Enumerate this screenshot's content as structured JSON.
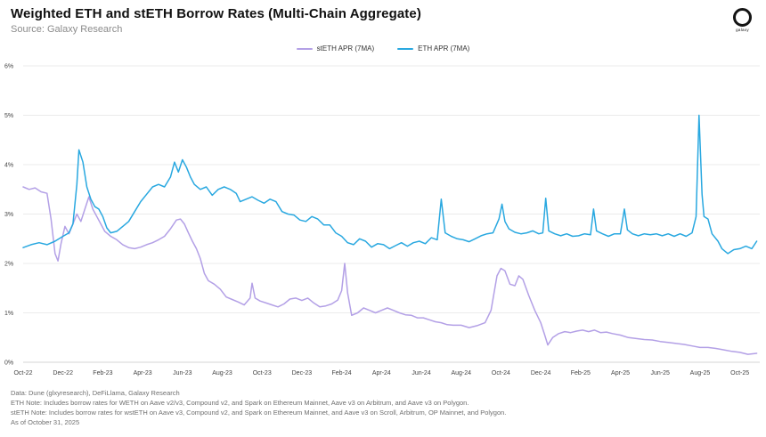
{
  "header": {
    "title": "Weighted ETH and stETH Borrow Rates (Multi-Chain Aggregate)",
    "source": "Source: Galaxy Research",
    "logo_text": "galaxy"
  },
  "legend": [
    {
      "label": "stETH APR (7MA)",
      "color": "#b3a0e6"
    },
    {
      "label": "ETH APR (7MA)",
      "color": "#29a8e0"
    }
  ],
  "footer": {
    "lines": [
      "Data: Dune (glxyresearch), DeFiLlama, Galaxy Research",
      "ETH Note: Includes borrow rates for WETH on Aave v2/v3, Compound v2, and Spark on Ethereum Mainnet, Aave v3 on Arbitrum, and Aave v3 on Polygon.",
      "stETH Note: Includes  borrow rates for wstETH on Aave v3, Compound v2, and  Spark on Ethereum Mainnet, and Aave v3 on Scroll, Arbitrum, OP Mainnet, and Polygon.",
      "As of October 31, 2025"
    ]
  },
  "chart_data": {
    "type": "line",
    "title": "Weighted ETH and stETH Borrow Rates (Multi-Chain Aggregate)",
    "x_unit": "months since Oct-2022",
    "xlim": [
      0,
      37
    ],
    "ylim": [
      0,
      6
    ],
    "grid": true,
    "legend_position": "top",
    "y_ticks": [
      "0%",
      "1%",
      "2%",
      "3%",
      "4%",
      "5%",
      "6%"
    ],
    "x_ticks": [
      {
        "x": 0,
        "label": "Oct-22"
      },
      {
        "x": 2,
        "label": "Dec-22"
      },
      {
        "x": 4,
        "label": "Feb-23"
      },
      {
        "x": 6,
        "label": "Apr-23"
      },
      {
        "x": 8,
        "label": "Jun-23"
      },
      {
        "x": 10,
        "label": "Aug-23"
      },
      {
        "x": 12,
        "label": "Oct-23"
      },
      {
        "x": 14,
        "label": "Dec-23"
      },
      {
        "x": 16,
        "label": "Feb-24"
      },
      {
        "x": 18,
        "label": "Apr-24"
      },
      {
        "x": 20,
        "label": "Jun-24"
      },
      {
        "x": 22,
        "label": "Aug-24"
      },
      {
        "x": 24,
        "label": "Oct-24"
      },
      {
        "x": 26,
        "label": "Dec-24"
      },
      {
        "x": 28,
        "label": "Feb-25"
      },
      {
        "x": 30,
        "label": "Apr-25"
      },
      {
        "x": 32,
        "label": "Jun-25"
      },
      {
        "x": 34,
        "label": "Aug-25"
      },
      {
        "x": 36,
        "label": "Oct-25"
      }
    ],
    "series": [
      {
        "name": "stETH APR (7MA)",
        "color": "#b3a0e6",
        "points": [
          [
            0,
            3.55
          ],
          [
            0.3,
            3.5
          ],
          [
            0.6,
            3.53
          ],
          [
            0.9,
            3.45
          ],
          [
            1.2,
            3.42
          ],
          [
            1.4,
            2.9
          ],
          [
            1.6,
            2.2
          ],
          [
            1.75,
            2.05
          ],
          [
            1.9,
            2.4
          ],
          [
            2.1,
            2.75
          ],
          [
            2.3,
            2.6
          ],
          [
            2.5,
            2.8
          ],
          [
            2.7,
            3.0
          ],
          [
            2.9,
            2.85
          ],
          [
            3.1,
            3.1
          ],
          [
            3.3,
            3.35
          ],
          [
            3.5,
            3.1
          ],
          [
            3.7,
            2.95
          ],
          [
            3.9,
            2.8
          ],
          [
            4.1,
            2.65
          ],
          [
            4.4,
            2.55
          ],
          [
            4.7,
            2.48
          ],
          [
            5,
            2.38
          ],
          [
            5.3,
            2.32
          ],
          [
            5.6,
            2.3
          ],
          [
            5.9,
            2.33
          ],
          [
            6.2,
            2.38
          ],
          [
            6.5,
            2.42
          ],
          [
            6.8,
            2.48
          ],
          [
            7.1,
            2.55
          ],
          [
            7.4,
            2.7
          ],
          [
            7.7,
            2.88
          ],
          [
            7.9,
            2.9
          ],
          [
            8.1,
            2.8
          ],
          [
            8.3,
            2.62
          ],
          [
            8.5,
            2.45
          ],
          [
            8.7,
            2.3
          ],
          [
            8.9,
            2.1
          ],
          [
            9.1,
            1.8
          ],
          [
            9.3,
            1.65
          ],
          [
            9.6,
            1.58
          ],
          [
            9.9,
            1.48
          ],
          [
            10.2,
            1.32
          ],
          [
            10.5,
            1.27
          ],
          [
            10.8,
            1.22
          ],
          [
            11.1,
            1.16
          ],
          [
            11.4,
            1.3
          ],
          [
            11.5,
            1.6
          ],
          [
            11.65,
            1.3
          ],
          [
            11.9,
            1.24
          ],
          [
            12.2,
            1.2
          ],
          [
            12.5,
            1.16
          ],
          [
            12.8,
            1.12
          ],
          [
            13.1,
            1.18
          ],
          [
            13.4,
            1.28
          ],
          [
            13.7,
            1.3
          ],
          [
            14,
            1.25
          ],
          [
            14.3,
            1.3
          ],
          [
            14.6,
            1.2
          ],
          [
            14.9,
            1.12
          ],
          [
            15.2,
            1.14
          ],
          [
            15.5,
            1.18
          ],
          [
            15.8,
            1.26
          ],
          [
            16,
            1.45
          ],
          [
            16.15,
            2.0
          ],
          [
            16.3,
            1.4
          ],
          [
            16.5,
            0.95
          ],
          [
            16.8,
            1.0
          ],
          [
            17.1,
            1.1
          ],
          [
            17.4,
            1.05
          ],
          [
            17.7,
            1.0
          ],
          [
            18,
            1.05
          ],
          [
            18.3,
            1.1
          ],
          [
            18.6,
            1.05
          ],
          [
            18.9,
            1.0
          ],
          [
            19.2,
            0.96
          ],
          [
            19.5,
            0.95
          ],
          [
            19.8,
            0.9
          ],
          [
            20.1,
            0.9
          ],
          [
            20.4,
            0.86
          ],
          [
            20.7,
            0.82
          ],
          [
            21,
            0.8
          ],
          [
            21.3,
            0.76
          ],
          [
            21.6,
            0.75
          ],
          [
            22,
            0.75
          ],
          [
            22.4,
            0.7
          ],
          [
            22.8,
            0.74
          ],
          [
            23.2,
            0.8
          ],
          [
            23.5,
            1.05
          ],
          [
            23.8,
            1.75
          ],
          [
            24,
            1.9
          ],
          [
            24.2,
            1.85
          ],
          [
            24.45,
            1.58
          ],
          [
            24.7,
            1.55
          ],
          [
            24.9,
            1.75
          ],
          [
            25.1,
            1.68
          ],
          [
            25.4,
            1.35
          ],
          [
            25.7,
            1.05
          ],
          [
            26,
            0.8
          ],
          [
            26.2,
            0.55
          ],
          [
            26.35,
            0.35
          ],
          [
            26.6,
            0.5
          ],
          [
            26.9,
            0.58
          ],
          [
            27.2,
            0.62
          ],
          [
            27.5,
            0.6
          ],
          [
            27.8,
            0.63
          ],
          [
            28.1,
            0.65
          ],
          [
            28.4,
            0.62
          ],
          [
            28.7,
            0.65
          ],
          [
            29,
            0.6
          ],
          [
            29.3,
            0.61
          ],
          [
            29.6,
            0.58
          ],
          [
            30,
            0.55
          ],
          [
            30.4,
            0.5
          ],
          [
            30.8,
            0.48
          ],
          [
            31.2,
            0.46
          ],
          [
            31.6,
            0.45
          ],
          [
            32,
            0.42
          ],
          [
            32.4,
            0.4
          ],
          [
            32.8,
            0.38
          ],
          [
            33.2,
            0.36
          ],
          [
            33.6,
            0.33
          ],
          [
            34,
            0.3
          ],
          [
            34.4,
            0.3
          ],
          [
            34.8,
            0.28
          ],
          [
            35.2,
            0.25
          ],
          [
            35.6,
            0.22
          ],
          [
            36,
            0.2
          ],
          [
            36.4,
            0.16
          ],
          [
            36.85,
            0.18
          ]
        ]
      },
      {
        "name": "ETH APR (7MA)",
        "color": "#29a8e0",
        "points": [
          [
            0,
            2.32
          ],
          [
            0.4,
            2.38
          ],
          [
            0.8,
            2.42
          ],
          [
            1.2,
            2.38
          ],
          [
            1.6,
            2.45
          ],
          [
            2,
            2.55
          ],
          [
            2.3,
            2.62
          ],
          [
            2.5,
            2.8
          ],
          [
            2.7,
            3.6
          ],
          [
            2.8,
            4.3
          ],
          [
            3,
            4.05
          ],
          [
            3.2,
            3.55
          ],
          [
            3.4,
            3.3
          ],
          [
            3.6,
            3.15
          ],
          [
            3.8,
            3.1
          ],
          [
            4,
            2.95
          ],
          [
            4.2,
            2.72
          ],
          [
            4.4,
            2.62
          ],
          [
            4.7,
            2.65
          ],
          [
            5,
            2.75
          ],
          [
            5.3,
            2.85
          ],
          [
            5.6,
            3.05
          ],
          [
            5.9,
            3.25
          ],
          [
            6.2,
            3.4
          ],
          [
            6.5,
            3.55
          ],
          [
            6.8,
            3.6
          ],
          [
            7.1,
            3.55
          ],
          [
            7.4,
            3.75
          ],
          [
            7.6,
            4.05
          ],
          [
            7.8,
            3.85
          ],
          [
            8,
            4.1
          ],
          [
            8.2,
            3.95
          ],
          [
            8.4,
            3.75
          ],
          [
            8.6,
            3.6
          ],
          [
            8.9,
            3.5
          ],
          [
            9.2,
            3.55
          ],
          [
            9.5,
            3.38
          ],
          [
            9.8,
            3.5
          ],
          [
            10.1,
            3.55
          ],
          [
            10.4,
            3.5
          ],
          [
            10.7,
            3.42
          ],
          [
            10.9,
            3.25
          ],
          [
            11.2,
            3.3
          ],
          [
            11.5,
            3.35
          ],
          [
            11.8,
            3.28
          ],
          [
            12.1,
            3.22
          ],
          [
            12.4,
            3.3
          ],
          [
            12.7,
            3.25
          ],
          [
            13,
            3.05
          ],
          [
            13.3,
            3.0
          ],
          [
            13.6,
            2.98
          ],
          [
            13.9,
            2.88
          ],
          [
            14.2,
            2.85
          ],
          [
            14.5,
            2.95
          ],
          [
            14.8,
            2.9
          ],
          [
            15.1,
            2.78
          ],
          [
            15.4,
            2.78
          ],
          [
            15.7,
            2.62
          ],
          [
            16,
            2.55
          ],
          [
            16.3,
            2.42
          ],
          [
            16.6,
            2.38
          ],
          [
            16.9,
            2.5
          ],
          [
            17.2,
            2.45
          ],
          [
            17.5,
            2.33
          ],
          [
            17.8,
            2.4
          ],
          [
            18.1,
            2.38
          ],
          [
            18.4,
            2.3
          ],
          [
            18.7,
            2.36
          ],
          [
            19,
            2.42
          ],
          [
            19.3,
            2.35
          ],
          [
            19.6,
            2.42
          ],
          [
            19.9,
            2.45
          ],
          [
            20.2,
            2.4
          ],
          [
            20.5,
            2.52
          ],
          [
            20.8,
            2.48
          ],
          [
            21,
            3.3
          ],
          [
            21.2,
            2.62
          ],
          [
            21.5,
            2.55
          ],
          [
            21.8,
            2.5
          ],
          [
            22.1,
            2.48
          ],
          [
            22.4,
            2.44
          ],
          [
            22.7,
            2.5
          ],
          [
            23,
            2.56
          ],
          [
            23.3,
            2.6
          ],
          [
            23.6,
            2.62
          ],
          [
            23.9,
            2.9
          ],
          [
            24.05,
            3.2
          ],
          [
            24.2,
            2.85
          ],
          [
            24.4,
            2.7
          ],
          [
            24.7,
            2.63
          ],
          [
            25,
            2.6
          ],
          [
            25.3,
            2.62
          ],
          [
            25.6,
            2.66
          ],
          [
            25.9,
            2.6
          ],
          [
            26.1,
            2.62
          ],
          [
            26.25,
            3.32
          ],
          [
            26.4,
            2.66
          ],
          [
            26.7,
            2.6
          ],
          [
            27,
            2.56
          ],
          [
            27.3,
            2.6
          ],
          [
            27.6,
            2.55
          ],
          [
            27.9,
            2.56
          ],
          [
            28.2,
            2.6
          ],
          [
            28.5,
            2.58
          ],
          [
            28.65,
            3.1
          ],
          [
            28.8,
            2.66
          ],
          [
            29.1,
            2.6
          ],
          [
            29.4,
            2.55
          ],
          [
            29.7,
            2.6
          ],
          [
            30,
            2.6
          ],
          [
            30.2,
            3.1
          ],
          [
            30.35,
            2.68
          ],
          [
            30.6,
            2.6
          ],
          [
            30.9,
            2.56
          ],
          [
            31.2,
            2.6
          ],
          [
            31.5,
            2.58
          ],
          [
            31.8,
            2.6
          ],
          [
            32.1,
            2.56
          ],
          [
            32.4,
            2.6
          ],
          [
            32.7,
            2.55
          ],
          [
            33,
            2.6
          ],
          [
            33.3,
            2.55
          ],
          [
            33.6,
            2.62
          ],
          [
            33.8,
            2.95
          ],
          [
            33.95,
            5.0
          ],
          [
            34.1,
            3.4
          ],
          [
            34.2,
            2.95
          ],
          [
            34.4,
            2.9
          ],
          [
            34.6,
            2.6
          ],
          [
            34.9,
            2.45
          ],
          [
            35.1,
            2.3
          ],
          [
            35.4,
            2.2
          ],
          [
            35.7,
            2.28
          ],
          [
            36,
            2.3
          ],
          [
            36.3,
            2.35
          ],
          [
            36.6,
            2.3
          ],
          [
            36.85,
            2.45
          ]
        ]
      }
    ]
  }
}
